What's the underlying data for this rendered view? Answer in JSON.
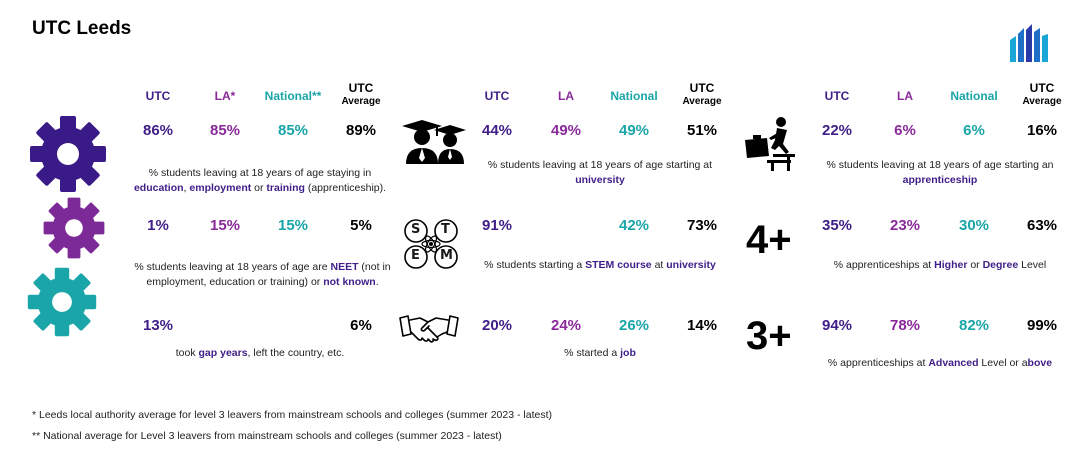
{
  "title": "UTC Leeds",
  "colors": {
    "utc": "#3f1e87",
    "la": "#8a2a9a",
    "national": "#1aa5a8",
    "average": "#000000",
    "gear_dark": "#3a1a86",
    "gear_mid": "#7d2a99",
    "gear_teal": "#1aa5a8"
  },
  "headers": {
    "utc": "UTC",
    "la_star": "LA*",
    "national_star": "National**",
    "la": "LA",
    "national": "National",
    "avg_1": "UTC",
    "avg_2": "Average"
  },
  "col1": {
    "row1": {
      "utc": "86%",
      "la": "85%",
      "national": "85%",
      "avg": "89%",
      "desc_a": "% students leaving at 18 years of age staying in",
      "desc_b1": "education",
      "desc_b2": ", ",
      "desc_b3": "employment",
      "desc_b4": " or ",
      "desc_b5": "training",
      "desc_b6": " (apprenticeship)."
    },
    "row2": {
      "utc": "1%",
      "la": "15%",
      "national": "15%",
      "avg": "5%",
      "desc_a1": "% students leaving at 18 years of age are ",
      "desc_a2": "NEET",
      "desc_a3": " (not in",
      "desc_b1": "employment, education or training) or ",
      "desc_b2": "not known",
      "desc_b3": "."
    },
    "row3": {
      "utc": "13%",
      "avg": "6%",
      "desc_1": "took ",
      "desc_2": "gap years",
      "desc_3": ", left the country, etc."
    }
  },
  "col2": {
    "row1": {
      "utc": "44%",
      "la": "49%",
      "national": "49%",
      "avg": "51%",
      "desc_a": "% students leaving at 18 years of age starting at",
      "desc_b": "university"
    },
    "row2": {
      "utc": "91%",
      "national": "42%",
      "avg": "73%",
      "desc_1": "% students starting a ",
      "desc_2": "STEM course",
      "desc_3": " at ",
      "desc_4": "university",
      "stem_s": "S",
      "stem_t": "T",
      "stem_e": "E",
      "stem_m": "M"
    },
    "row3": {
      "utc": "20%",
      "la": "24%",
      "national": "26%",
      "avg": "14%",
      "desc_1": "% started a ",
      "desc_2": "job"
    }
  },
  "col3": {
    "row1": {
      "utc": "22%",
      "la": "6%",
      "national": "6%",
      "avg": "16%",
      "desc_a": "% students leaving at 18 years of age starting an",
      "desc_b": "apprenticeship"
    },
    "row2": {
      "big": "4+",
      "utc": "35%",
      "la": "23%",
      "national": "30%",
      "avg": "63%",
      "desc_1": "% apprenticeships at ",
      "desc_2": "Higher",
      "desc_3": " or ",
      "desc_4": "Degree",
      "desc_5": " Level"
    },
    "row3": {
      "big": "3+",
      "utc": "94%",
      "la": "78%",
      "national": "82%",
      "avg": "99%",
      "desc_1": "% apprenticeships at ",
      "desc_2": "Advanced",
      "desc_3": " Level or a",
      "desc_4": "bove"
    }
  },
  "footnotes": {
    "one": "* Leeds local authority average for level 3 leavers from mainstream schools and colleges (summer 2023 - latest)",
    "two": "** National average for Level 3 leavers from mainstream schools and colleges (summer 2023 - latest)"
  },
  "icons": [
    "gear-icon",
    "graduates-icon",
    "stem-icon",
    "handshake-icon",
    "apprentice-icon",
    "logo-icon"
  ]
}
